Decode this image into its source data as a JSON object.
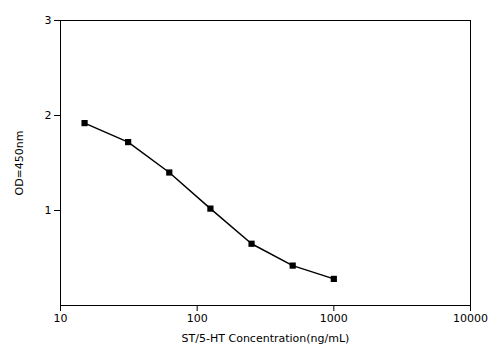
{
  "chart_data": {
    "type": "line",
    "x": [
      15,
      31.25,
      62.5,
      125,
      250,
      500,
      1000
    ],
    "values": [
      1.92,
      1.72,
      1.4,
      1.02,
      0.65,
      0.42,
      0.28
    ],
    "xlabel": "ST/5-HT Concentration(ng/mL)",
    "ylabel": "OD=450nm",
    "xlim": [
      10,
      10000
    ],
    "ylim": [
      0,
      3
    ],
    "xticks": [
      10,
      100,
      1000,
      10000
    ],
    "yticks": [
      1,
      2,
      3
    ],
    "log": "x",
    "marker": "square",
    "grid": false
  }
}
